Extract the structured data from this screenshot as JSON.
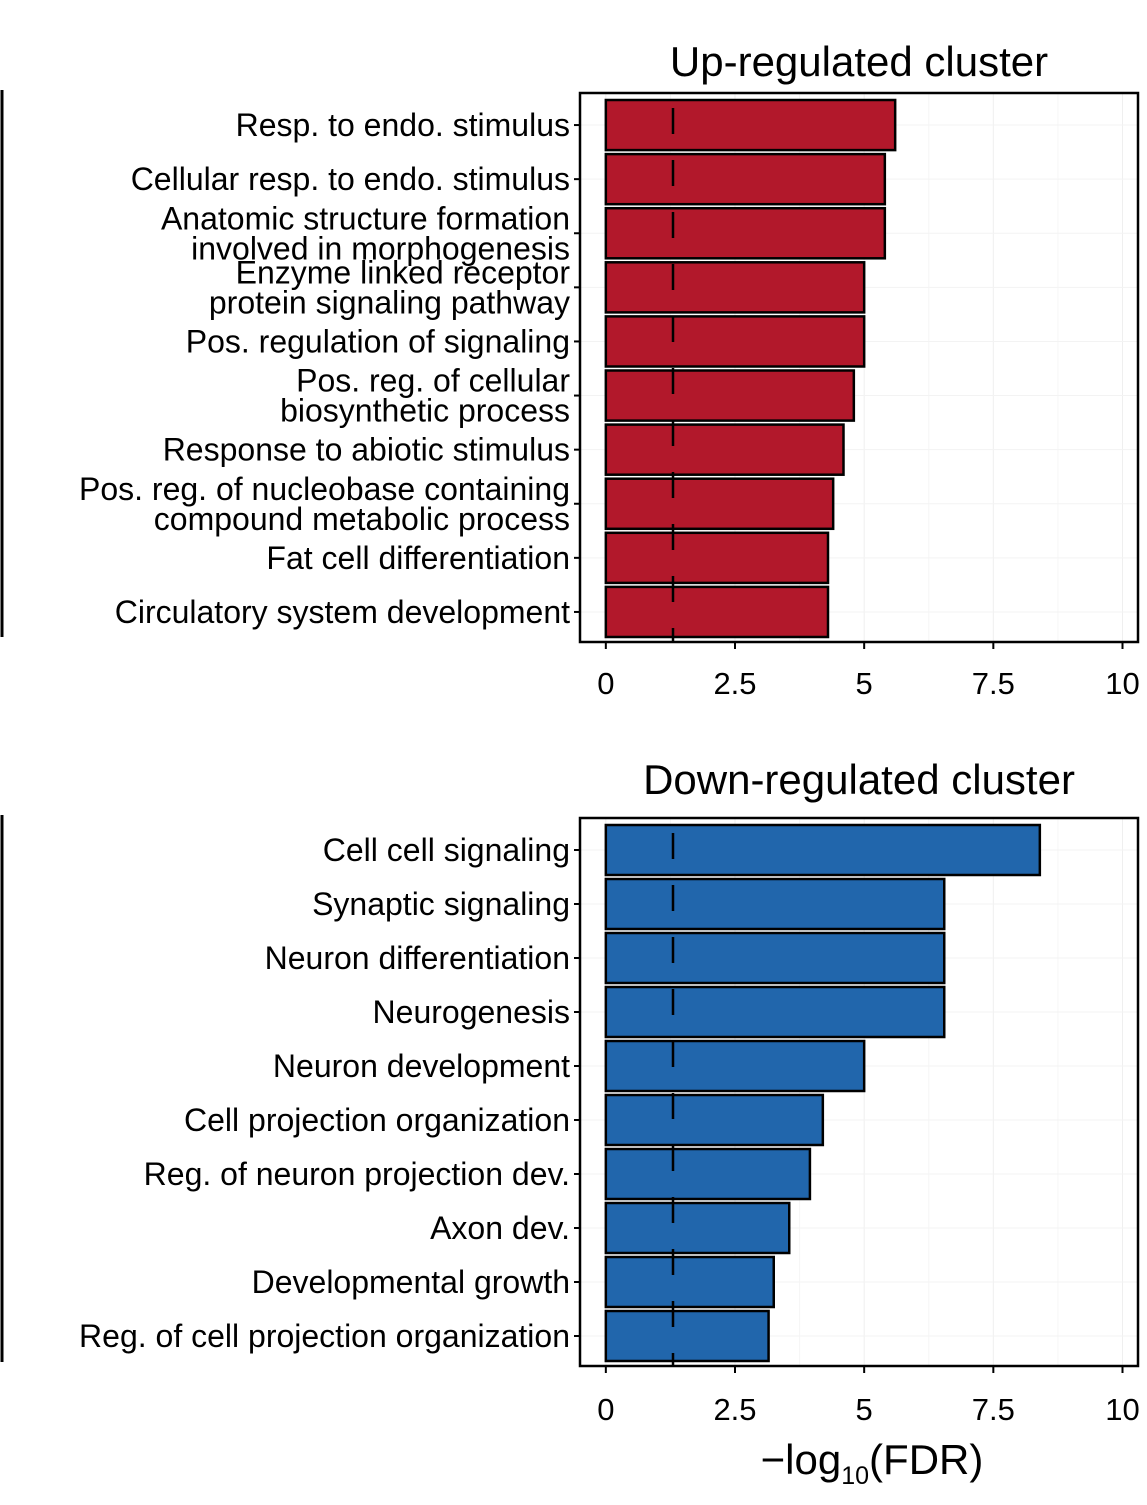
{
  "chart_data": [
    {
      "type": "bar",
      "orientation": "horizontal",
      "title": "Up-regulated cluster",
      "categories": [
        "Resp. to endo. stimulus",
        "Cellular resp. to endo. stimulus",
        "Anatomic structure formation\ninvolved in morphogenesis",
        "Enzyme linked receptor\nprotein signaling pathway",
        "Pos. regulation of signaling",
        "Pos. reg. of cellular\nbiosynthetic process",
        "Response to abiotic stimulus",
        "Pos. reg. of nucleobase containing\ncompound metabolic process",
        "Fat cell differentiation",
        "Circulatory system development"
      ],
      "values": [
        5.6,
        5.4,
        5.4,
        5.0,
        5.0,
        4.8,
        4.6,
        4.4,
        4.3,
        4.3
      ],
      "xlim": [
        -0.5,
        10.3
      ],
      "xticks": [
        0,
        2.5,
        5,
        7.5,
        10
      ],
      "xtick_labels": [
        "0",
        "2.5",
        "5",
        "7.5",
        "10"
      ],
      "threshold": 1.3,
      "bar_color": "#b2182b",
      "xlabel": ""
    },
    {
      "type": "bar",
      "orientation": "horizontal",
      "title": "Down-regulated cluster",
      "categories": [
        "Cell cell signaling",
        "Synaptic signaling",
        "Neuron differentiation",
        "Neurogenesis",
        "Neuron development",
        "Cell projection organization",
        "Reg. of neuron projection dev.",
        "Axon dev.",
        "Developmental growth",
        "Reg. of cell projection organization"
      ],
      "values": [
        8.4,
        6.55,
        6.55,
        6.55,
        5.0,
        4.2,
        3.95,
        3.55,
        3.25,
        3.15
      ],
      "xlim": [
        -0.5,
        10.3
      ],
      "xticks": [
        0,
        2.5,
        5,
        7.5,
        10
      ],
      "xtick_labels": [
        "0",
        "2.5",
        "5",
        "7.5",
        "10"
      ],
      "threshold": 1.3,
      "bar_color": "#2166ac",
      "xlabel_main": "−log",
      "xlabel_sub": "10",
      "xlabel_tail": "(FDR)"
    }
  ]
}
